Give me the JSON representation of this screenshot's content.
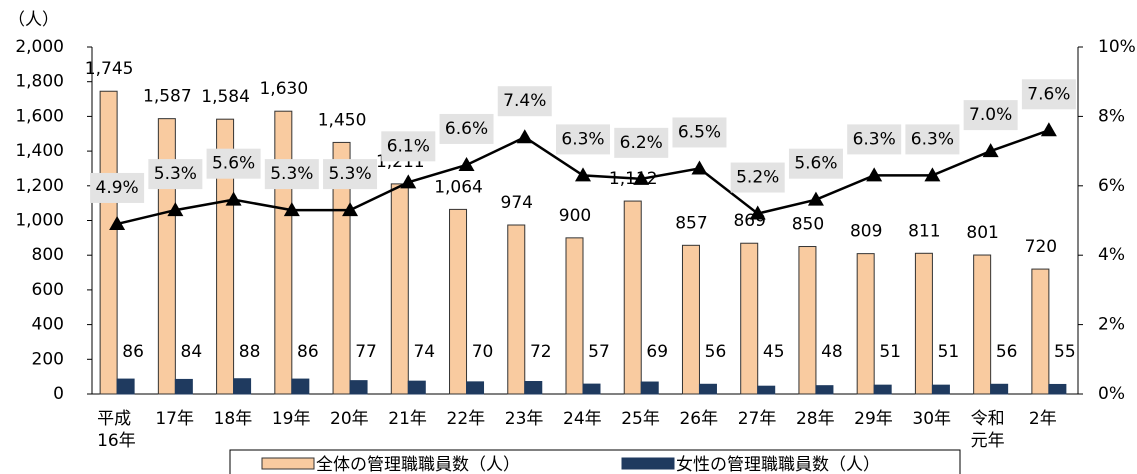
{
  "chart_data": {
    "type": "bar_line",
    "y_axis_label": "（人）",
    "categories": [
      "平成16年",
      "17年",
      "18年",
      "19年",
      "20年",
      "21年",
      "22年",
      "23年",
      "24年",
      "25年",
      "26年",
      "27年",
      "28年",
      "29年",
      "30年",
      "令和元年",
      "2年"
    ],
    "series": [
      {
        "name": "全体の管理職職員数（人）",
        "color": "#f9cba0",
        "type": "bar",
        "values": [
          1745,
          1587,
          1584,
          1630,
          1450,
          1211,
          1064,
          974,
          900,
          1112,
          857,
          869,
          850,
          809,
          811,
          801,
          720
        ],
        "value_labels": [
          "1,745",
          "1,587",
          "1,584",
          "1,630",
          "1,450",
          "1,211",
          "1,064",
          "974",
          "900",
          "1,112",
          "857",
          "869",
          "850",
          "809",
          "811",
          "801",
          "720"
        ]
      },
      {
        "name": "女性の管理職職員数（人）",
        "color": "#1f3a5f",
        "type": "bar",
        "values": [
          86,
          84,
          88,
          86,
          77,
          74,
          70,
          72,
          57,
          69,
          56,
          45,
          48,
          51,
          51,
          56,
          55
        ]
      },
      {
        "color": "#000000",
        "type": "line",
        "axis": "y2",
        "values": [
          4.9,
          5.3,
          5.6,
          5.3,
          5.3,
          6.1,
          6.6,
          7.4,
          6.3,
          6.2,
          6.5,
          5.2,
          5.6,
          6.3,
          6.3,
          7.0,
          7.6
        ],
        "value_labels": [
          "4.9%",
          "5.3%",
          "5.6%",
          "5.3%",
          "5.3%",
          "6.1%",
          "6.6%",
          "7.4%",
          "6.3%",
          "6.2%",
          "6.5%",
          "5.2%",
          "5.6%",
          "6.3%",
          "6.3%",
          "7.0%",
          "7.6%"
        ]
      }
    ],
    "ylim": [
      0,
      2000
    ],
    "yticks": [
      0,
      200,
      400,
      600,
      800,
      {
        "value": 1000,
        "label": "1,000"
      },
      {
        "value": 1200,
        "label": "1,200"
      },
      {
        "value": 1400,
        "label": "1,400"
      },
      {
        "value": 1600,
        "label": "1,600"
      },
      {
        "value": 1800,
        "label": "1,800"
      },
      {
        "value": 2000,
        "label": "2,000"
      }
    ],
    "y2lim": [
      0,
      10
    ],
    "y2ticks": [
      {
        "value": 0,
        "label": "0%"
      },
      {
        "value": 2,
        "label": "2%"
      },
      {
        "value": 4,
        "label": "4%"
      },
      {
        "value": 6,
        "label": "6%"
      },
      {
        "value": 8,
        "label": "8%"
      },
      {
        "value": 10,
        "label": "10%"
      }
    ],
    "grid": false
  }
}
